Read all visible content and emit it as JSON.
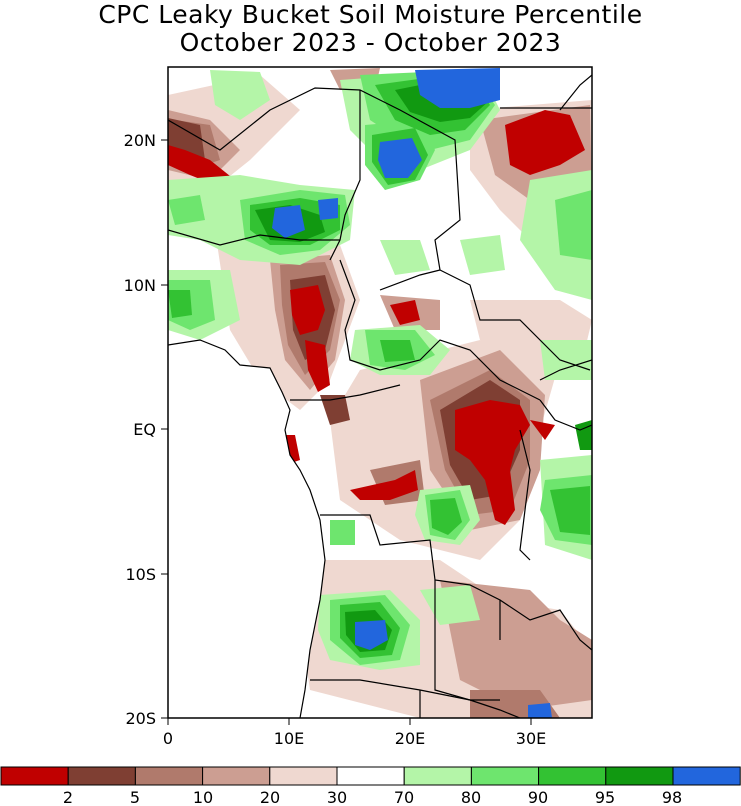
{
  "title": {
    "line1": "CPC Leaky Bucket Soil Moisture Percentile",
    "line2": "October 2023 - October 2023"
  },
  "axes": {
    "x_ticks": [
      "0",
      "10E",
      "20E",
      "30E"
    ],
    "y_ticks": [
      "20N",
      "10N",
      "EQ",
      "10S",
      "20S"
    ]
  },
  "legend": {
    "labels": [
      "2",
      "5",
      "10",
      "20",
      "30",
      "70",
      "80",
      "90",
      "95",
      "98"
    ],
    "colors": [
      "#c00000",
      "#7f3f33",
      "#b07a6c",
      "#cc9e92",
      "#efd8d0",
      "#ffffff",
      "#b4f5a8",
      "#6ee56e",
      "#33c233",
      "#119911",
      "#2266dd"
    ]
  },
  "map": {
    "region": "Central Africa",
    "lon_range": [
      0,
      35
    ],
    "lat_range": [
      -20,
      25
    ],
    "palette": {
      "dry_extreme": "#c00000",
      "dry_strong": "#7f3f33",
      "dry_moderate": "#b07a6c",
      "dry_mild": "#cc9e92",
      "dry_slight": "#efd8d0",
      "wet_slight": "#b4f5a8",
      "wet_mild": "#6ee56e",
      "wet_moderate": "#33c233",
      "wet_strong": "#119911",
      "wet_extreme": "#2266dd"
    }
  }
}
